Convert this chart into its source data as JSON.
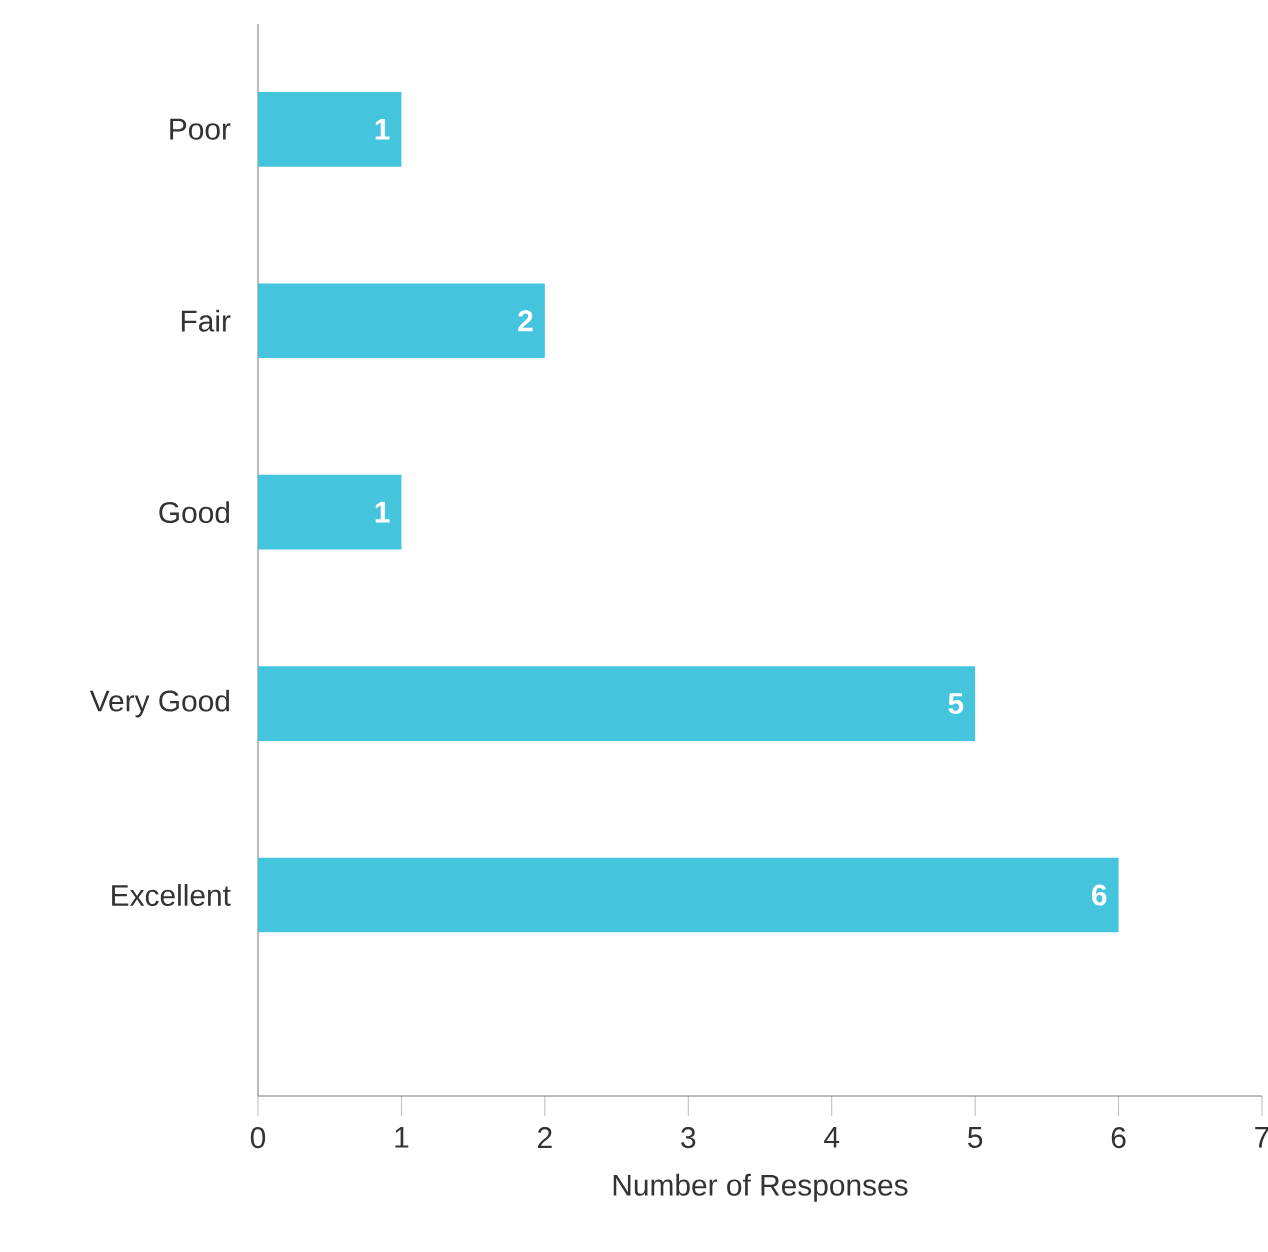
{
  "chart_data": {
    "type": "bar",
    "orientation": "horizontal",
    "xlabel": "Number of Responses",
    "categories": [
      "Poor",
      "Fair",
      "Good",
      "Very Good",
      "Excellent"
    ],
    "values": [
      1,
      2,
      1,
      5,
      6
    ],
    "color": "#45c4de",
    "data_labels": true,
    "xlim": [
      0,
      7
    ],
    "xticks": [
      0,
      1,
      2,
      3,
      4,
      5,
      6,
      7
    ],
    "grid": false
  }
}
